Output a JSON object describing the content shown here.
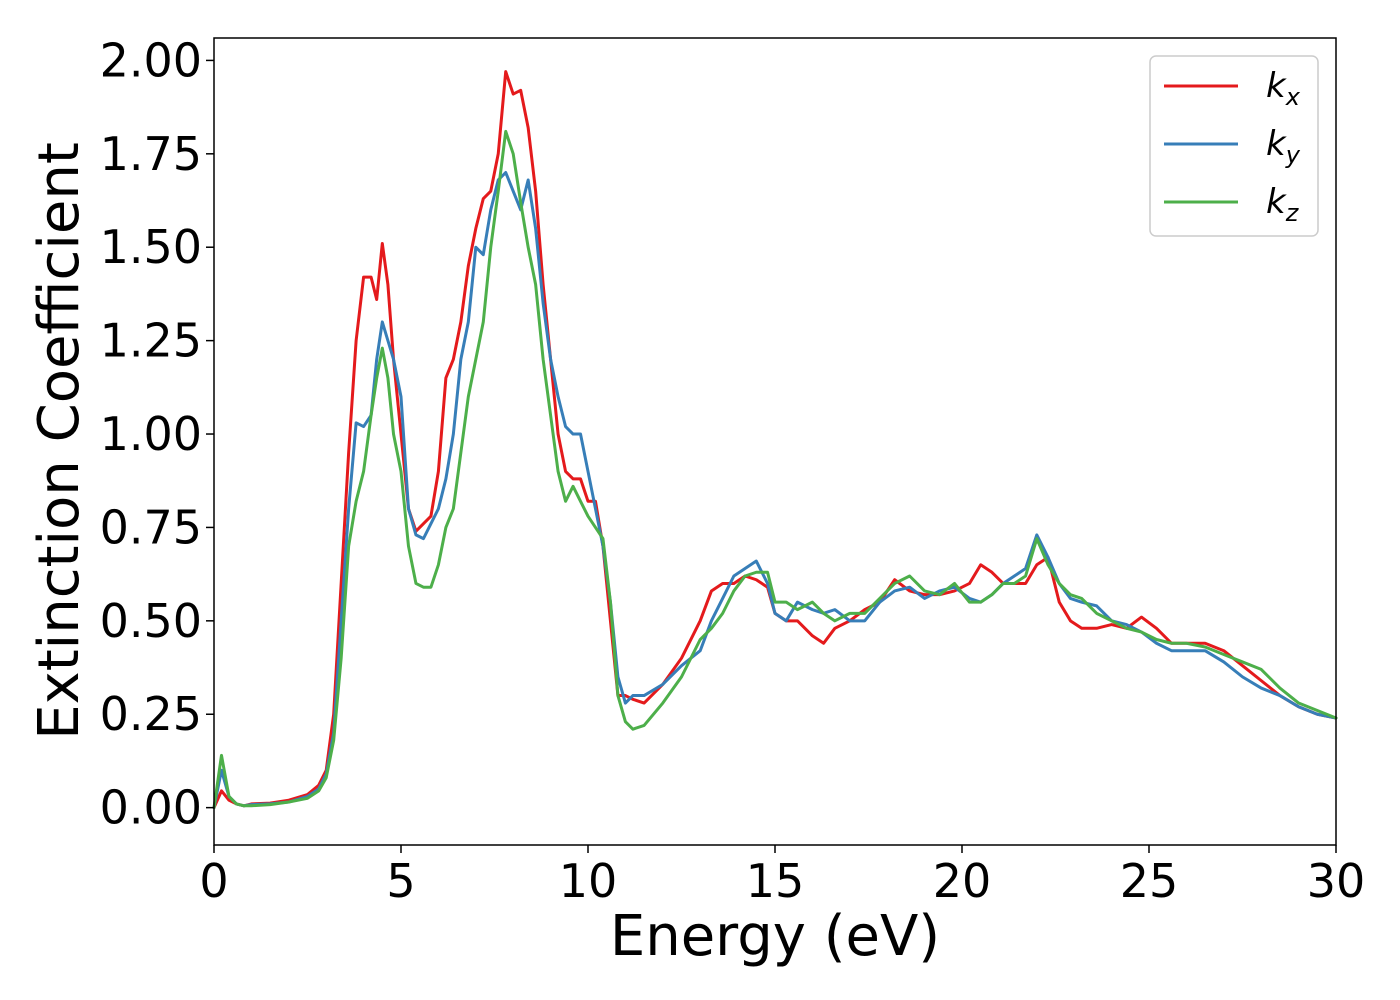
{
  "chart_data": {
    "type": "line",
    "title": "",
    "xlabel": "Energy (eV)",
    "ylabel": "Extinction Coefficient",
    "xlim": [
      0,
      30
    ],
    "ylim": [
      -0.1,
      2.06
    ],
    "xticks": [
      0,
      5,
      10,
      15,
      20,
      25,
      30
    ],
    "xtick_labels": [
      "0",
      "5",
      "10",
      "15",
      "20",
      "25",
      "30"
    ],
    "yticks": [
      0,
      0.25,
      0.5,
      0.75,
      1.0,
      1.25,
      1.5,
      1.75,
      2.0
    ],
    "ytick_labels": [
      "0.00",
      "0.25",
      "0.50",
      "0.75",
      "1.00",
      "1.25",
      "1.50",
      "1.75",
      "2.00"
    ],
    "grid": false,
    "legend_position": "top-right",
    "series": [
      {
        "name": "k",
        "subscript": "x",
        "color": "#e41a1c",
        "x": [
          0,
          0.2,
          0.4,
          0.6,
          0.8,
          1.0,
          1.5,
          2.0,
          2.5,
          2.8,
          3.0,
          3.2,
          3.4,
          3.6,
          3.8,
          4.0,
          4.2,
          4.35,
          4.5,
          4.65,
          4.8,
          5.0,
          5.2,
          5.4,
          5.6,
          5.8,
          6.0,
          6.2,
          6.4,
          6.6,
          6.8,
          7.0,
          7.2,
          7.4,
          7.6,
          7.8,
          8.0,
          8.2,
          8.4,
          8.6,
          8.8,
          9.0,
          9.2,
          9.4,
          9.6,
          9.8,
          10.0,
          10.2,
          10.4,
          10.6,
          10.8,
          11.0,
          11.2,
          11.5,
          12.0,
          12.5,
          13.0,
          13.3,
          13.6,
          13.9,
          14.2,
          14.5,
          14.8,
          15.0,
          15.3,
          15.6,
          16.0,
          16.3,
          16.6,
          17.0,
          17.4,
          17.8,
          18.2,
          18.6,
          19.0,
          19.4,
          19.8,
          20.2,
          20.5,
          20.8,
          21.1,
          21.4,
          21.7,
          22.0,
          22.3,
          22.6,
          22.9,
          23.2,
          23.6,
          24.0,
          24.4,
          24.8,
          25.2,
          25.6,
          26.0,
          26.5,
          27.0,
          27.5,
          28.0,
          28.5,
          29.0,
          29.5,
          30.0
        ],
        "y": [
          0.0,
          0.045,
          0.02,
          0.01,
          0.005,
          0.01,
          0.012,
          0.02,
          0.035,
          0.06,
          0.1,
          0.25,
          0.6,
          0.95,
          1.25,
          1.42,
          1.42,
          1.36,
          1.51,
          1.4,
          1.2,
          1.0,
          0.8,
          0.74,
          0.76,
          0.78,
          0.9,
          1.15,
          1.2,
          1.3,
          1.45,
          1.55,
          1.63,
          1.65,
          1.75,
          1.97,
          1.91,
          1.92,
          1.82,
          1.65,
          1.4,
          1.2,
          1.0,
          0.9,
          0.88,
          0.88,
          0.82,
          0.82,
          0.7,
          0.5,
          0.3,
          0.3,
          0.29,
          0.28,
          0.33,
          0.4,
          0.5,
          0.58,
          0.6,
          0.6,
          0.62,
          0.61,
          0.59,
          0.52,
          0.5,
          0.5,
          0.46,
          0.44,
          0.48,
          0.5,
          0.53,
          0.55,
          0.61,
          0.58,
          0.57,
          0.57,
          0.58,
          0.6,
          0.65,
          0.63,
          0.6,
          0.6,
          0.6,
          0.65,
          0.67,
          0.55,
          0.5,
          0.48,
          0.48,
          0.49,
          0.48,
          0.51,
          0.48,
          0.44,
          0.44,
          0.44,
          0.42,
          0.38,
          0.34,
          0.3,
          0.27,
          0.25,
          0.24
        ]
      },
      {
        "name": "k",
        "subscript": "y",
        "color": "#377eb8",
        "x": [
          0,
          0.2,
          0.4,
          0.6,
          0.8,
          1.0,
          1.5,
          2.0,
          2.5,
          2.8,
          3.0,
          3.2,
          3.4,
          3.6,
          3.8,
          4.0,
          4.2,
          4.35,
          4.5,
          4.65,
          4.8,
          5.0,
          5.2,
          5.4,
          5.6,
          5.8,
          6.0,
          6.2,
          6.4,
          6.6,
          6.8,
          7.0,
          7.2,
          7.4,
          7.6,
          7.8,
          8.0,
          8.2,
          8.4,
          8.6,
          8.8,
          9.0,
          9.2,
          9.4,
          9.6,
          9.8,
          10.0,
          10.2,
          10.4,
          10.6,
          10.8,
          11.0,
          11.2,
          11.5,
          12.0,
          12.5,
          13.0,
          13.3,
          13.6,
          13.9,
          14.2,
          14.5,
          14.8,
          15.0,
          15.3,
          15.6,
          16.0,
          16.3,
          16.6,
          17.0,
          17.4,
          17.8,
          18.2,
          18.6,
          19.0,
          19.4,
          19.8,
          20.2,
          20.5,
          20.8,
          21.1,
          21.4,
          21.7,
          22.0,
          22.3,
          22.6,
          22.9,
          23.2,
          23.6,
          24.0,
          24.4,
          24.8,
          25.2,
          25.6,
          26.0,
          26.5,
          27.0,
          27.5,
          28.0,
          28.5,
          29.0,
          29.5,
          30.0
        ],
        "y": [
          0.0,
          0.1,
          0.03,
          0.01,
          0.005,
          0.008,
          0.01,
          0.015,
          0.03,
          0.05,
          0.09,
          0.2,
          0.5,
          0.8,
          1.03,
          1.02,
          1.05,
          1.2,
          1.3,
          1.25,
          1.2,
          1.1,
          0.8,
          0.73,
          0.72,
          0.76,
          0.8,
          0.88,
          1.0,
          1.2,
          1.3,
          1.5,
          1.48,
          1.6,
          1.68,
          1.7,
          1.65,
          1.6,
          1.68,
          1.55,
          1.35,
          1.2,
          1.1,
          1.02,
          1.0,
          1.0,
          0.9,
          0.8,
          0.7,
          0.55,
          0.35,
          0.28,
          0.3,
          0.3,
          0.33,
          0.38,
          0.42,
          0.5,
          0.56,
          0.62,
          0.64,
          0.66,
          0.6,
          0.52,
          0.5,
          0.55,
          0.53,
          0.52,
          0.53,
          0.5,
          0.5,
          0.55,
          0.58,
          0.59,
          0.56,
          0.58,
          0.59,
          0.56,
          0.55,
          0.57,
          0.6,
          0.62,
          0.64,
          0.73,
          0.67,
          0.6,
          0.56,
          0.55,
          0.54,
          0.5,
          0.49,
          0.47,
          0.44,
          0.42,
          0.42,
          0.42,
          0.39,
          0.35,
          0.32,
          0.3,
          0.27,
          0.25,
          0.24
        ]
      },
      {
        "name": "k",
        "subscript": "z",
        "color": "#4daf4a",
        "x": [
          0,
          0.2,
          0.4,
          0.6,
          0.8,
          1.0,
          1.5,
          2.0,
          2.5,
          2.8,
          3.0,
          3.2,
          3.4,
          3.6,
          3.8,
          4.0,
          4.2,
          4.35,
          4.5,
          4.65,
          4.8,
          5.0,
          5.2,
          5.4,
          5.6,
          5.8,
          6.0,
          6.2,
          6.4,
          6.6,
          6.8,
          7.0,
          7.2,
          7.4,
          7.6,
          7.8,
          8.0,
          8.2,
          8.4,
          8.6,
          8.8,
          9.0,
          9.2,
          9.4,
          9.6,
          9.8,
          10.0,
          10.2,
          10.4,
          10.6,
          10.8,
          11.0,
          11.2,
          11.5,
          12.0,
          12.5,
          13.0,
          13.3,
          13.6,
          13.9,
          14.2,
          14.5,
          14.8,
          15.0,
          15.3,
          15.6,
          16.0,
          16.3,
          16.6,
          17.0,
          17.4,
          17.8,
          18.2,
          18.6,
          19.0,
          19.4,
          19.8,
          20.2,
          20.5,
          20.8,
          21.1,
          21.4,
          21.7,
          22.0,
          22.3,
          22.6,
          22.9,
          23.2,
          23.6,
          24.0,
          24.4,
          24.8,
          25.2,
          25.6,
          26.0,
          26.5,
          27.0,
          27.5,
          28.0,
          28.5,
          29.0,
          29.5,
          30.0
        ],
        "y": [
          0.0,
          0.14,
          0.03,
          0.01,
          0.005,
          0.005,
          0.008,
          0.015,
          0.025,
          0.045,
          0.08,
          0.18,
          0.4,
          0.7,
          0.82,
          0.9,
          1.05,
          1.15,
          1.23,
          1.15,
          1.0,
          0.9,
          0.7,
          0.6,
          0.59,
          0.59,
          0.65,
          0.75,
          0.8,
          0.95,
          1.1,
          1.2,
          1.3,
          1.5,
          1.65,
          1.81,
          1.75,
          1.62,
          1.5,
          1.4,
          1.2,
          1.05,
          0.9,
          0.82,
          0.86,
          0.82,
          0.78,
          0.75,
          0.72,
          0.55,
          0.3,
          0.23,
          0.21,
          0.22,
          0.28,
          0.35,
          0.45,
          0.48,
          0.52,
          0.58,
          0.62,
          0.63,
          0.63,
          0.55,
          0.55,
          0.53,
          0.55,
          0.52,
          0.5,
          0.52,
          0.52,
          0.56,
          0.6,
          0.62,
          0.58,
          0.57,
          0.6,
          0.55,
          0.55,
          0.57,
          0.6,
          0.6,
          0.62,
          0.72,
          0.65,
          0.6,
          0.57,
          0.56,
          0.52,
          0.5,
          0.48,
          0.47,
          0.45,
          0.44,
          0.44,
          0.43,
          0.41,
          0.39,
          0.37,
          0.32,
          0.28,
          0.26,
          0.24
        ]
      }
    ]
  }
}
